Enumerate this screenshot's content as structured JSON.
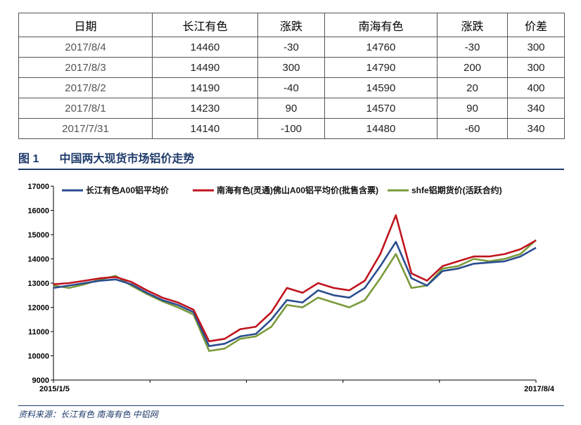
{
  "table": {
    "headers": [
      "日期",
      "长江有色",
      "涨跌",
      "南海有色",
      "涨跌",
      "价差"
    ],
    "rows": [
      [
        "2017/8/4",
        "14460",
        "-30",
        "14760",
        "-30",
        "300"
      ],
      [
        "2017/8/3",
        "14490",
        "300",
        "14790",
        "200",
        "300"
      ],
      [
        "2017/8/2",
        "14190",
        "-40",
        "14590",
        "20",
        "400"
      ],
      [
        "2017/8/1",
        "14230",
        "90",
        "14570",
        "90",
        "340"
      ],
      [
        "2017/7/31",
        "14140",
        "-100",
        "14480",
        "-60",
        "340"
      ]
    ]
  },
  "figure": {
    "number": "图 1",
    "title": "中国两大现货市场铝价走势",
    "source": "资料来源：长江有色   南海有色   中铝网"
  },
  "chart_data": {
    "type": "line",
    "title": "",
    "xlabel": "",
    "ylabel": "",
    "x_tick_labels": [
      "2015/1/5",
      "2017/8/4"
    ],
    "x": [
      "2015/1",
      "2015/2",
      "2015/3",
      "2015/4",
      "2015/5",
      "2015/6",
      "2015/7",
      "2015/8",
      "2015/9",
      "2015/10",
      "2015/11",
      "2015/12",
      "2016/1",
      "2016/2",
      "2016/3",
      "2016/4",
      "2016/5",
      "2016/6",
      "2016/7",
      "2016/8",
      "2016/9",
      "2016/10",
      "2016/11",
      "2016/12",
      "2017/1",
      "2017/2",
      "2017/3",
      "2017/4",
      "2017/5",
      "2017/6",
      "2017/7",
      "2017/8"
    ],
    "ylim": [
      9000,
      17000
    ],
    "y_ticks": [
      9000,
      10000,
      11000,
      12000,
      13000,
      14000,
      15000,
      16000,
      17000
    ],
    "grid": false,
    "legend_position": "top",
    "series": [
      {
        "name": "长江有色A00铝平均价",
        "color": "#2a4d8f",
        "values": [
          12800,
          12900,
          13000,
          13100,
          13150,
          12950,
          12600,
          12300,
          12100,
          11800,
          10400,
          10500,
          10800,
          10900,
          11500,
          12300,
          12200,
          12700,
          12500,
          12400,
          12800,
          13700,
          14700,
          13200,
          12900,
          13500,
          13600,
          13800,
          13850,
          13900,
          14100,
          14460
        ]
      },
      {
        "name": "南海有色(灵通)佛山A00铝平均价(批售含票)",
        "color": "#c0141e",
        "values": [
          12950,
          13000,
          13100,
          13200,
          13250,
          13050,
          12700,
          12400,
          12200,
          11900,
          10600,
          10700,
          11100,
          11200,
          11800,
          12800,
          12600,
          13000,
          12800,
          12700,
          13100,
          14200,
          15800,
          13400,
          13100,
          13700,
          13900,
          14100,
          14100,
          14200,
          14400,
          14760
        ]
      },
      {
        "name": "shfe铝期货价(活跃合约)",
        "color": "#7a9a3a",
        "values": [
          12900,
          12800,
          12950,
          13150,
          13300,
          12900,
          12550,
          12250,
          12000,
          11700,
          10200,
          10300,
          10700,
          10800,
          11200,
          12100,
          12000,
          12400,
          12200,
          12000,
          12300,
          13200,
          14200,
          12800,
          12900,
          13600,
          13700,
          14000,
          13900,
          14000,
          14200,
          14780
        ]
      }
    ]
  }
}
